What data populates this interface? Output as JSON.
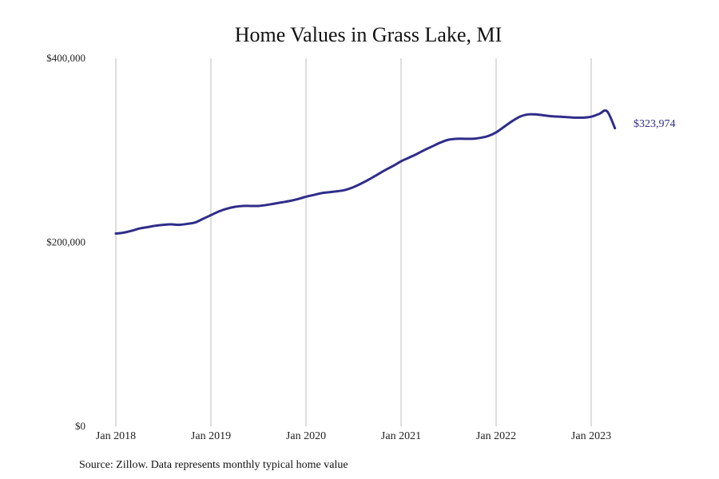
{
  "chart_data": {
    "type": "line",
    "title": "Home Values in Grass Lake, MI",
    "xlabel": "",
    "ylabel": "",
    "ylim": [
      0,
      400000
    ],
    "y_ticks": [
      {
        "value": 0,
        "label": "$0"
      },
      {
        "value": 200000,
        "label": "$200,000"
      },
      {
        "value": 400000,
        "label": "$400,000"
      }
    ],
    "x_ticks": [
      {
        "value": "2018-01",
        "label": "Jan 2018"
      },
      {
        "value": "2019-01",
        "label": "Jan 2019"
      },
      {
        "value": "2020-01",
        "label": "Jan 2020"
      },
      {
        "value": "2021-01",
        "label": "Jan 2021"
      },
      {
        "value": "2022-01",
        "label": "Jan 2022"
      },
      {
        "value": "2023-01",
        "label": "Jan 2023"
      }
    ],
    "xlim": [
      "2018-01",
      "2024-01"
    ],
    "grid": "vertical",
    "end_label": "$323,974",
    "series": [
      {
        "name": "",
        "color": "#2e2d8a",
        "x": [
          "2018-01",
          "2018-02",
          "2018-03",
          "2018-04",
          "2018-05",
          "2018-06",
          "2018-07",
          "2018-08",
          "2018-09",
          "2018-10",
          "2018-11",
          "2018-12",
          "2019-01",
          "2019-02",
          "2019-03",
          "2019-04",
          "2019-05",
          "2019-06",
          "2019-07",
          "2019-08",
          "2019-09",
          "2019-10",
          "2019-11",
          "2019-12",
          "2020-01",
          "2020-02",
          "2020-03",
          "2020-04",
          "2020-05",
          "2020-06",
          "2020-07",
          "2020-08",
          "2020-09",
          "2020-10",
          "2020-11",
          "2020-12",
          "2021-01",
          "2021-02",
          "2021-03",
          "2021-04",
          "2021-05",
          "2021-06",
          "2021-07",
          "2021-08",
          "2021-09",
          "2021-10",
          "2021-11",
          "2021-12",
          "2022-01",
          "2022-02",
          "2022-03",
          "2022-04",
          "2022-05",
          "2022-06",
          "2022-07",
          "2022-08",
          "2022-09",
          "2022-10",
          "2022-11",
          "2022-12",
          "2023-01",
          "2023-02",
          "2023-03",
          "2023-04"
        ],
        "values": [
          209500,
          210500,
          212500,
          215000,
          216500,
          218000,
          219000,
          219500,
          219000,
          220000,
          221500,
          225500,
          229500,
          233500,
          236500,
          238500,
          239500,
          239500,
          239500,
          240500,
          242000,
          243500,
          245000,
          247000,
          249500,
          251500,
          253500,
          254500,
          255500,
          257000,
          260000,
          264000,
          268500,
          273500,
          278500,
          283000,
          288000,
          292000,
          296000,
          300500,
          304500,
          308500,
          311500,
          312500,
          312500,
          312500,
          313500,
          315500,
          319500,
          325500,
          331500,
          336500,
          339000,
          339000,
          338000,
          337000,
          336500,
          336000,
          335500,
          335500,
          336500,
          339500,
          342500,
          323974
        ]
      }
    ]
  },
  "source_note": "Source: Zillow. Data represents monthly typical home value"
}
